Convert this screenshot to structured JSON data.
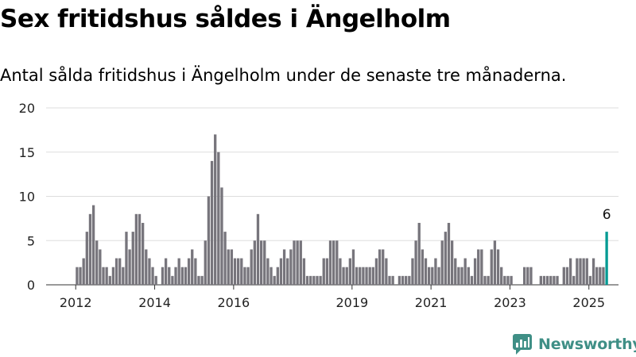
{
  "header": {
    "title": "Sex fritidshus såldes i Ängelholm",
    "subtitle": "Antal sålda fritidshus i Ängelholm under de senaste tre månaderna."
  },
  "brand": {
    "name": "Newsworthy",
    "icon": "newsworthy-logo-icon",
    "color": "#3f8f86"
  },
  "chart_data": {
    "type": "bar",
    "title": "Sex fritidshus såldes i Ängelholm",
    "subtitle": "Antal sålda fritidshus i Ängelholm under de senaste tre månaderna.",
    "xlabel": "",
    "ylabel": "",
    "ylim": [
      0,
      20
    ],
    "y_ticks": [
      0,
      5,
      10,
      15,
      20
    ],
    "x_ticks": [
      "2012",
      "2014",
      "2016",
      "2019",
      "2021",
      "2023",
      "2025"
    ],
    "x_tick_positions": [
      2012,
      2014,
      2016,
      2019,
      2021,
      2023,
      2025
    ],
    "x_range": [
      2011.25,
      2025.75
    ],
    "start": "2012-01",
    "interval": "month",
    "grid": true,
    "bar_color": "#77757c",
    "highlight_color": "#009a93",
    "highlight_label": "6",
    "values": [
      2,
      2,
      3,
      6,
      8,
      9,
      5,
      4,
      2,
      2,
      1,
      2,
      3,
      3,
      2,
      6,
      4,
      6,
      8,
      8,
      7,
      4,
      3,
      2,
      1,
      0,
      2,
      3,
      2,
      1,
      2,
      3,
      2,
      2,
      3,
      4,
      3,
      1,
      1,
      5,
      10,
      14,
      17,
      15,
      11,
      6,
      4,
      4,
      3,
      3,
      3,
      2,
      2,
      4,
      5,
      8,
      5,
      5,
      3,
      2,
      1,
      2,
      3,
      4,
      3,
      4,
      5,
      5,
      5,
      3,
      1,
      1,
      1,
      1,
      1,
      3,
      3,
      5,
      5,
      5,
      3,
      2,
      2,
      3,
      4,
      2,
      2,
      2,
      2,
      2,
      2,
      3,
      4,
      4,
      3,
      1,
      1,
      0,
      1,
      1,
      1,
      1,
      3,
      5,
      7,
      4,
      3,
      2,
      2,
      3,
      2,
      5,
      6,
      7,
      5,
      3,
      2,
      2,
      3,
      2,
      1,
      3,
      4,
      4,
      1,
      1,
      4,
      5,
      4,
      2,
      1,
      1,
      1,
      0,
      0,
      0,
      2,
      2,
      2,
      0,
      0,
      1,
      1,
      1,
      1,
      1,
      1,
      0,
      2,
      2,
      3,
      1,
      3,
      3,
      3,
      3,
      1,
      3,
      2,
      2,
      2,
      6
    ]
  }
}
